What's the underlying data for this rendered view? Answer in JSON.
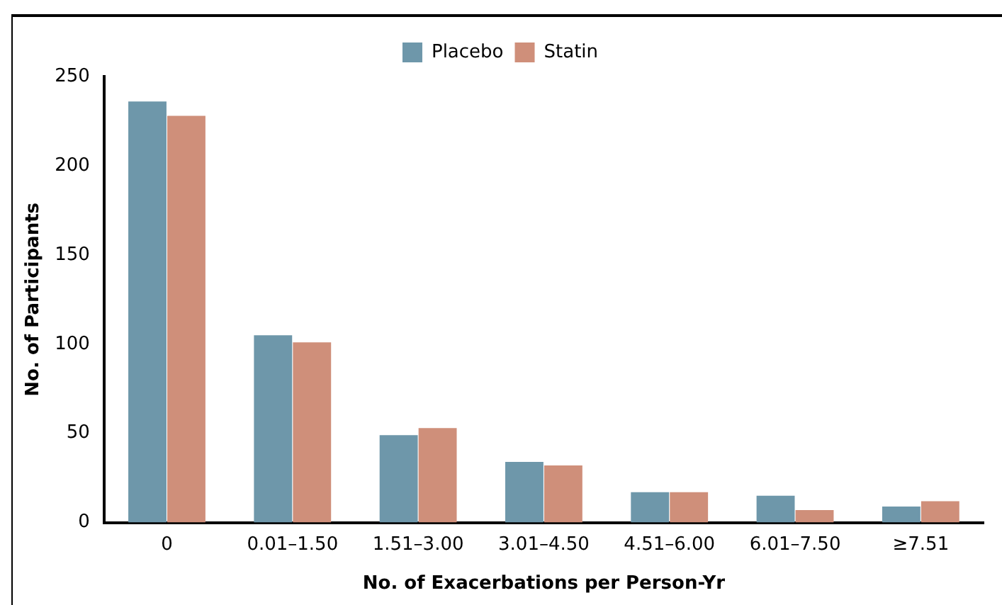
{
  "chart_data": {
    "type": "bar",
    "xlabel": "No. of Exacerbations per Person-Yr",
    "ylabel": "No. of Participants",
    "categories": [
      "0",
      "0.01–1.50",
      "1.51–3.00",
      "3.01–4.50",
      "4.51–6.00",
      "6.01–7.50",
      "≥7.51"
    ],
    "series": [
      {
        "name": "Placebo",
        "color": "#6e97aa",
        "values": [
          236,
          105,
          49,
          34,
          17,
          15,
          9
        ]
      },
      {
        "name": "Statin",
        "color": "#cf8f7a",
        "values": [
          228,
          101,
          53,
          32,
          17,
          7,
          12
        ]
      }
    ],
    "ylim": [
      0,
      250
    ],
    "yticks": [
      0,
      50,
      100,
      150,
      200,
      250
    ],
    "grid": false,
    "legend": "top"
  }
}
